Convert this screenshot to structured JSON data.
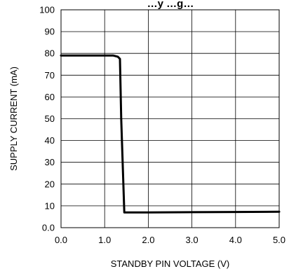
{
  "chart_data": {
    "type": "line",
    "title": "…y …g…",
    "xlabel": "STANDBY PIN VOLTAGE (V)",
    "ylabel": "SUPPLY CURRENT (mA)",
    "xlim": [
      0,
      5
    ],
    "ylim": [
      0,
      100
    ],
    "x_ticks": [
      "0.0",
      "1.0",
      "2.0",
      "3.0",
      "4.0",
      "5.0"
    ],
    "y_ticks": [
      "0.0",
      "10",
      "20",
      "30",
      "40",
      "50",
      "60",
      "70",
      "80",
      "90",
      "100"
    ],
    "grid": true,
    "series": [
      {
        "x": [
          0.0,
          1.2,
          1.3,
          1.35,
          1.38,
          1.45,
          1.5,
          2.0,
          3.0,
          4.0,
          5.0
        ],
        "y": [
          79,
          79,
          78.5,
          77.5,
          50,
          7,
          7,
          7,
          7.1,
          7.2,
          7.3
        ]
      }
    ],
    "colors": {
      "line": "#000000",
      "grid": "#000000",
      "background": "#ffffff"
    }
  }
}
